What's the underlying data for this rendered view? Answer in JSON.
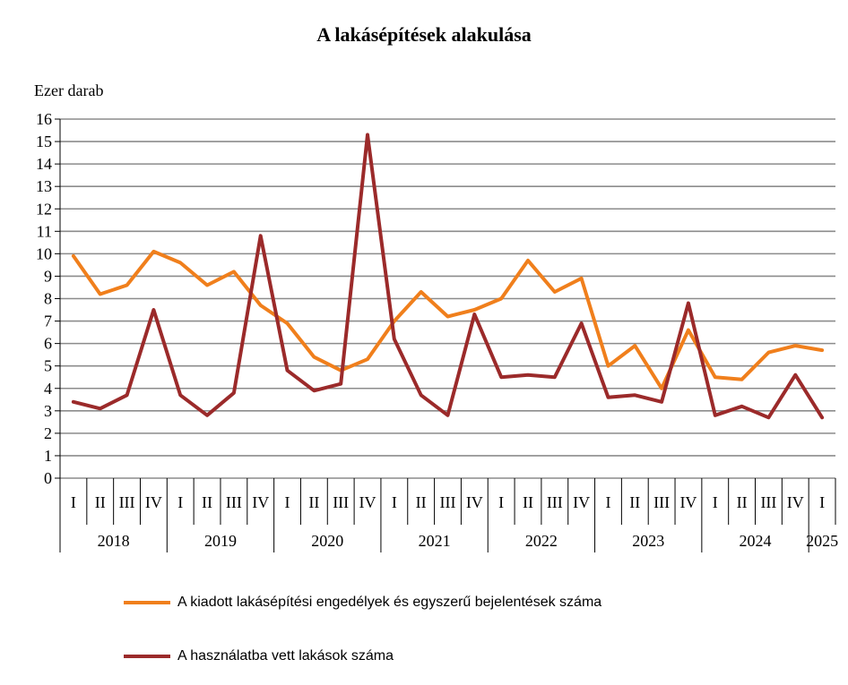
{
  "chart_data": {
    "type": "line",
    "title": "A lakásépítések alakulása",
    "ylabel": "Ezer darab",
    "xlabel": "",
    "ylim": [
      0,
      16
    ],
    "yticks": [
      0,
      1,
      2,
      3,
      4,
      5,
      6,
      7,
      8,
      9,
      10,
      11,
      12,
      13,
      14,
      15,
      16
    ],
    "grid": true,
    "legend_position": "bottom",
    "x_quarters": [
      "I",
      "II",
      "III",
      "IV",
      "I",
      "II",
      "III",
      "IV",
      "I",
      "II",
      "III",
      "IV",
      "I",
      "II",
      "III",
      "IV",
      "I",
      "II",
      "III",
      "IV",
      "I",
      "II",
      "III",
      "IV",
      "I",
      "II",
      "III",
      "IV",
      "I"
    ],
    "x_years": [
      {
        "label": "2018",
        "quarters": 4
      },
      {
        "label": "2019",
        "quarters": 4
      },
      {
        "label": "2020",
        "quarters": 4
      },
      {
        "label": "2021",
        "quarters": 4
      },
      {
        "label": "2022",
        "quarters": 4
      },
      {
        "label": "2023",
        "quarters": 4
      },
      {
        "label": "2024",
        "quarters": 4
      },
      {
        "label": "2025",
        "quarters": 1
      }
    ],
    "series": [
      {
        "name": "A kiadott lakásépítési engedélyek és egyszerű bejelentések száma",
        "color": "#f07f1c",
        "values": [
          9.9,
          8.2,
          8.6,
          10.1,
          9.6,
          8.6,
          9.2,
          7.7,
          6.9,
          5.4,
          4.8,
          5.3,
          7.0,
          8.3,
          7.2,
          7.5,
          8.0,
          9.7,
          8.3,
          8.9,
          5.0,
          5.9,
          4.0,
          6.6,
          4.5,
          4.4,
          5.6,
          5.9,
          5.7
        ]
      },
      {
        "name": "A használatba vett lakások száma",
        "color": "#9b2a2a",
        "values": [
          3.4,
          3.1,
          3.7,
          7.5,
          3.7,
          2.8,
          3.8,
          10.8,
          4.8,
          3.9,
          4.2,
          15.3,
          6.2,
          3.7,
          2.8,
          7.3,
          4.5,
          4.6,
          4.5,
          6.9,
          3.6,
          3.7,
          3.4,
          7.8,
          2.8,
          3.2,
          2.7,
          4.6,
          2.7
        ]
      }
    ]
  }
}
